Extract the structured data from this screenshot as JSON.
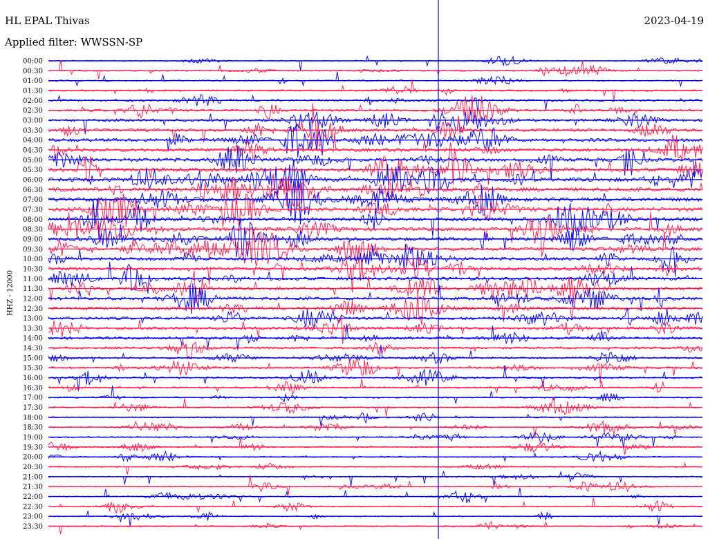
{
  "header": {
    "station": "HL EPAL Thivas",
    "filter": "Applied filter: WWSSN-SP",
    "date": "2023-04-19"
  },
  "axis": {
    "ylabel": "HHZ - 12000"
  },
  "colors": {
    "trace_a": "#0000ee",
    "trace_b": "#ff1a4a",
    "marker": "#0000ee",
    "background": "#ffffff"
  },
  "chart_data": {
    "type": "line",
    "subtype": "helicorder",
    "title": "HL EPAL Thivas",
    "subtitle": "Applied filter: WWSSN-SP",
    "date": "2023-04-19",
    "ylabel": "HHZ - 12000",
    "row_minutes": 30,
    "rows": [
      "00:00",
      "00:30",
      "01:00",
      "01:30",
      "02:00",
      "02:30",
      "03:00",
      "03:30",
      "04:00",
      "04:30",
      "05:00",
      "05:30",
      "06:00",
      "06:30",
      "07:00",
      "07:30",
      "08:00",
      "08:30",
      "09:00",
      "09:30",
      "10:00",
      "10:30",
      "11:00",
      "11:30",
      "12:00",
      "12:30",
      "13:00",
      "13:30",
      "14:00",
      "14:30",
      "15:00",
      "15:30",
      "16:00",
      "16:30",
      "17:00",
      "17:30",
      "18:00",
      "18:30",
      "19:00",
      "19:30",
      "20:00",
      "20:30",
      "21:00",
      "21:30",
      "22:00",
      "22:30",
      "23:00",
      "23:30"
    ],
    "trace_colors": [
      "#0000ee",
      "#ff1a4a"
    ],
    "activity": [
      0.08,
      0.1,
      0.12,
      0.22,
      0.3,
      0.35,
      0.45,
      0.5,
      0.62,
      0.65,
      0.7,
      0.75,
      0.78,
      0.8,
      0.78,
      0.75,
      0.72,
      0.7,
      0.68,
      0.62,
      0.6,
      0.6,
      0.6,
      0.58,
      0.58,
      0.55,
      0.52,
      0.48,
      0.45,
      0.35,
      0.3,
      0.28,
      0.25,
      0.2,
      0.18,
      0.15,
      0.14,
      0.14,
      0.13,
      0.13,
      0.12,
      0.12,
      0.1,
      0.08,
      0.08,
      0.1,
      0.08,
      0.08
    ],
    "grid": false,
    "legend": "none"
  }
}
